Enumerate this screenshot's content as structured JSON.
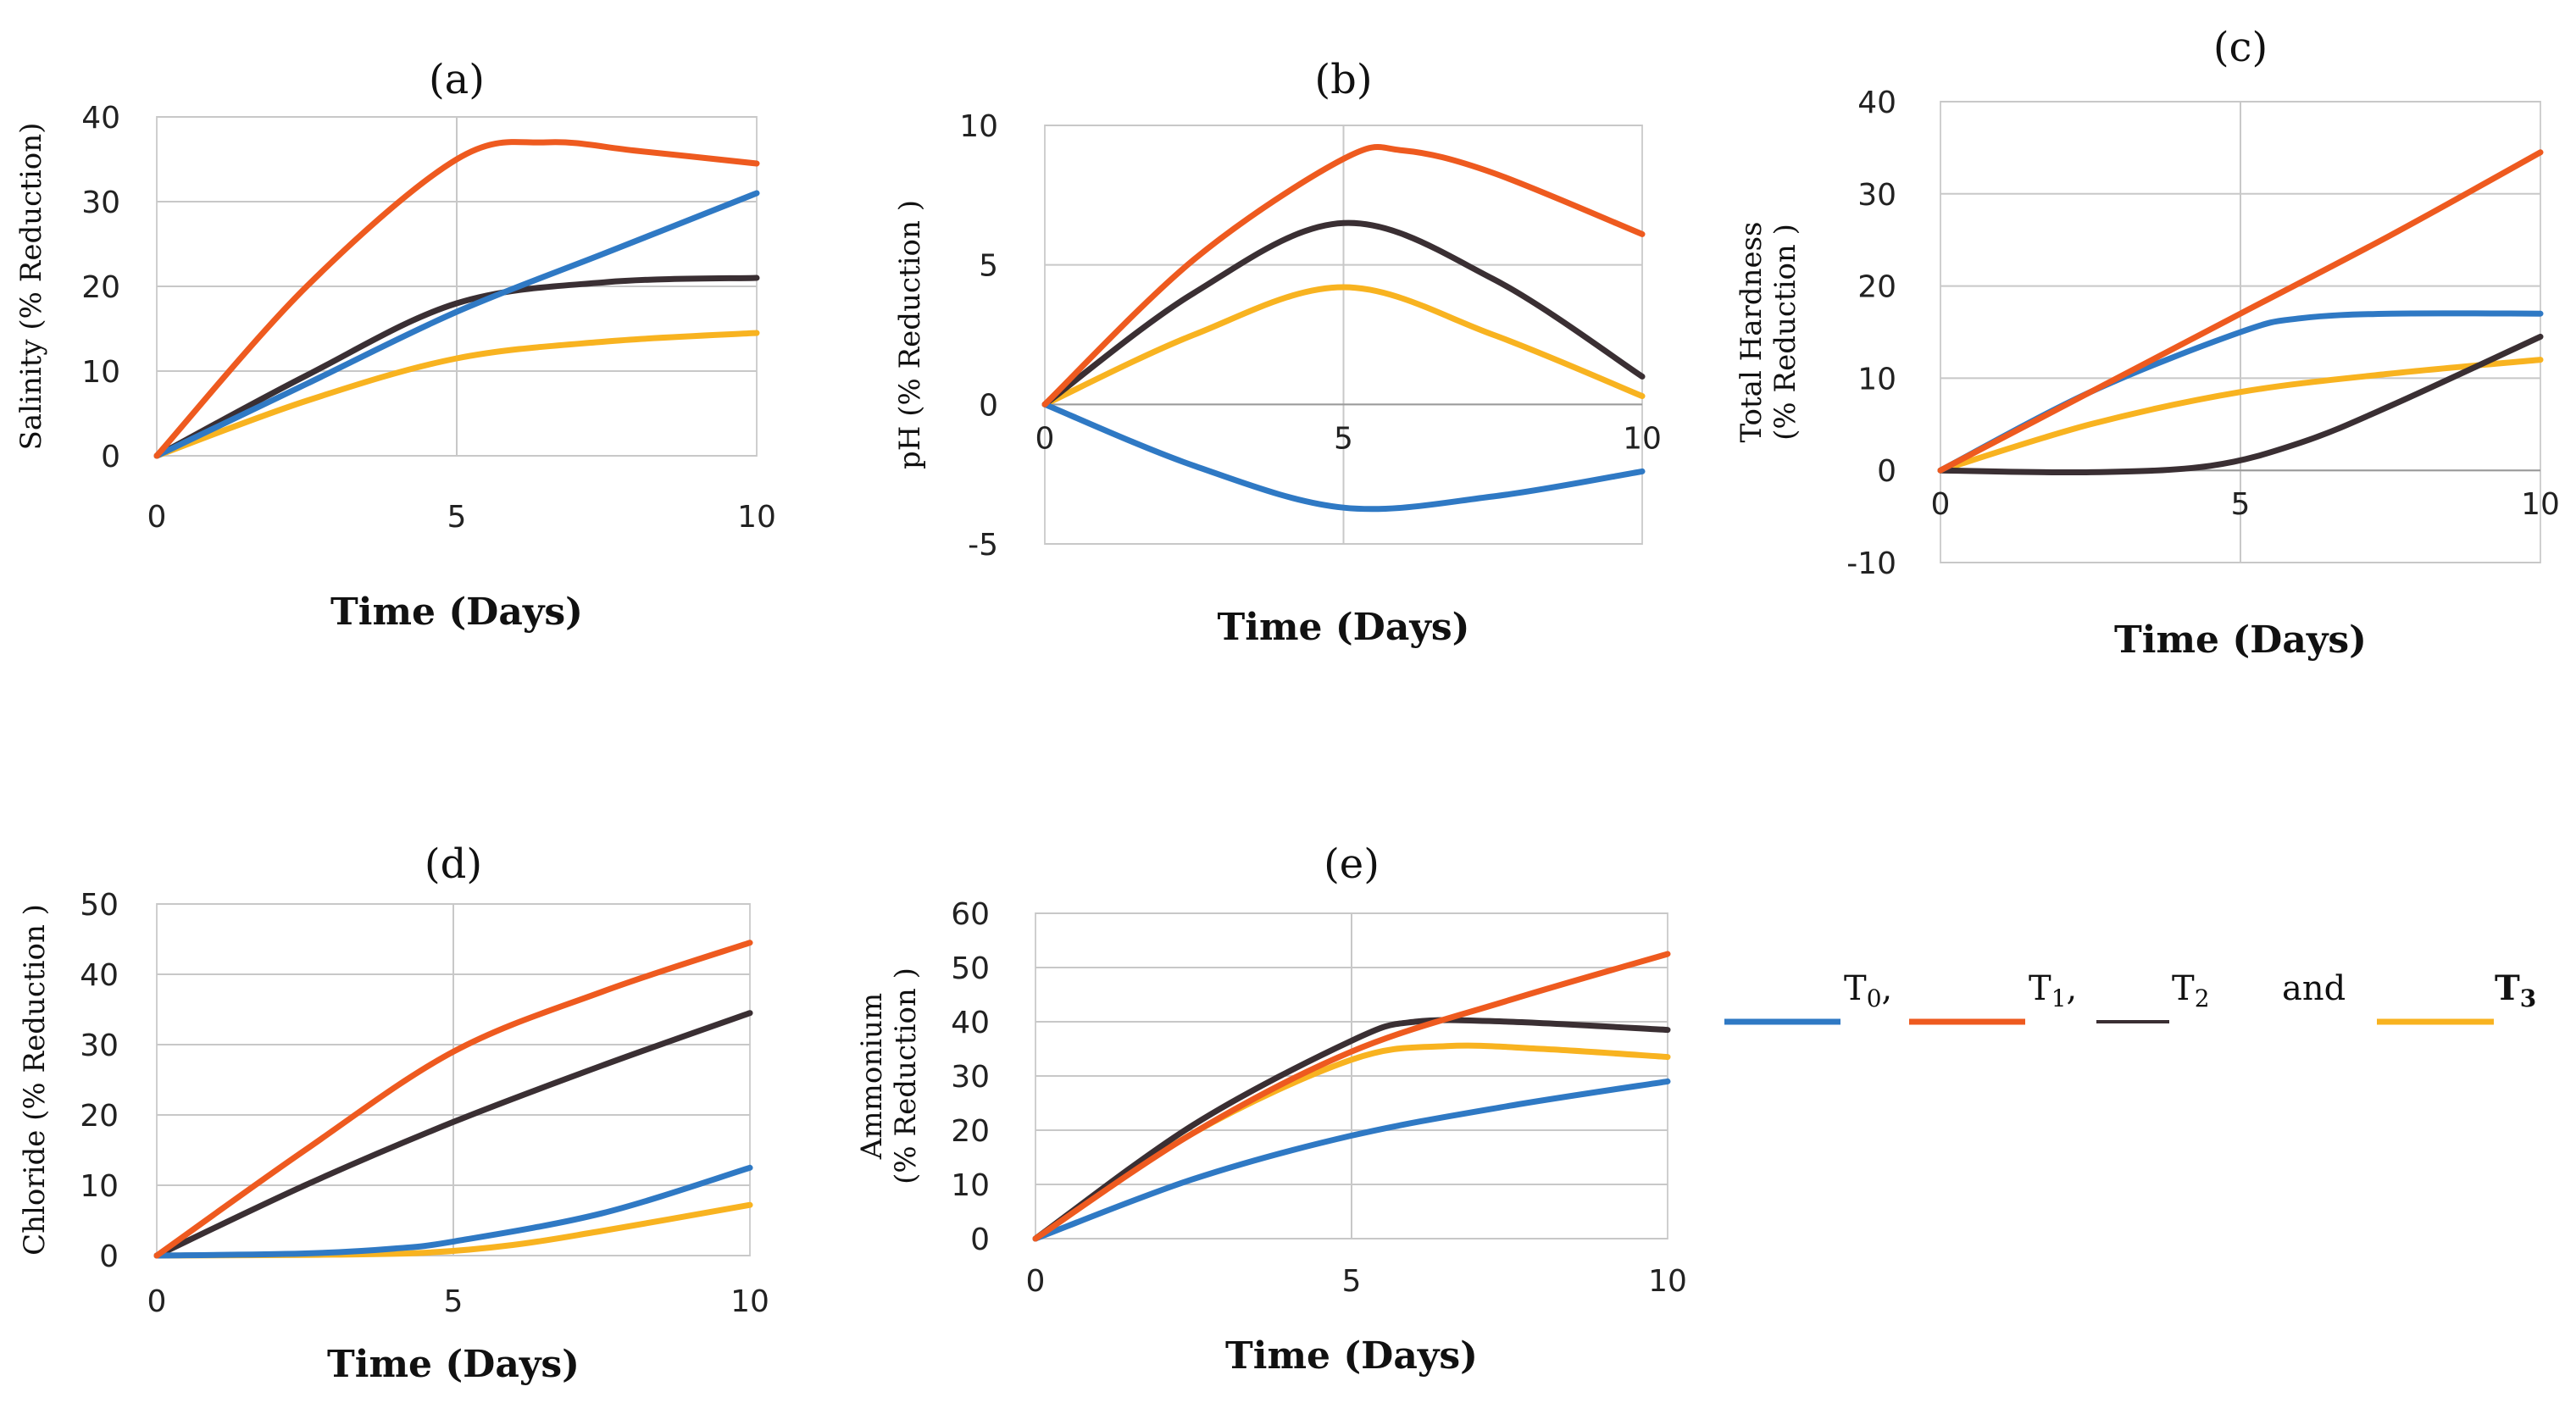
{
  "legend": {
    "entries": [
      {
        "key": "T0",
        "base": "T",
        "sub": "0",
        "suffix": ",",
        "color": "#2f79c4"
      },
      {
        "key": "T1",
        "base": "T",
        "sub": "1",
        "suffix": ",",
        "color": "#ee5a1f"
      },
      {
        "key": "T2",
        "base": "T",
        "sub": "2",
        "suffix": "",
        "color": "#3a2f33"
      },
      {
        "key": "T3",
        "base": "T",
        "sub": "3",
        "suffix": "",
        "color": "#f8b320"
      }
    ],
    "connector": "and"
  },
  "chart_data": [
    {
      "type": "line",
      "title": "(a)",
      "xlabel": "Time (Days)",
      "ylabel": [
        "Salinity (% Reduction)"
      ],
      "xlim": [
        0,
        10
      ],
      "ylim": [
        0,
        40
      ],
      "xticks": [
        0,
        5,
        10
      ],
      "yticks": [
        0,
        10,
        20,
        30,
        40
      ],
      "series": [
        {
          "name": "T0",
          "x": [
            0,
            2.5,
            5,
            7.5,
            10
          ],
          "values": [
            0,
            8.5,
            17,
            24,
            31
          ]
        },
        {
          "name": "T1",
          "x": [
            0,
            2.5,
            5,
            6.5,
            8,
            10
          ],
          "values": [
            0,
            20,
            35,
            37,
            36,
            34.5
          ]
        },
        {
          "name": "T2",
          "x": [
            0,
            2.5,
            5,
            7.5,
            10
          ],
          "values": [
            0,
            9.5,
            18,
            20.5,
            21
          ]
        },
        {
          "name": "T3",
          "x": [
            0,
            2.5,
            5,
            7.5,
            10
          ],
          "values": [
            0,
            6.5,
            11.5,
            13.5,
            14.5
          ]
        }
      ]
    },
    {
      "type": "line",
      "title": "(b)",
      "xlabel": "Time (Days)",
      "ylabel": [
        "pH (% Reduction )"
      ],
      "xlim": [
        0,
        10
      ],
      "ylim": [
        -5,
        10
      ],
      "xticks": [
        0,
        5,
        10
      ],
      "yticks": [
        -5,
        0,
        5,
        10
      ],
      "xaxis_at_zero": true,
      "series": [
        {
          "name": "T0",
          "x": [
            0,
            2.5,
            5,
            7.5,
            10
          ],
          "values": [
            0,
            -2.2,
            -3.7,
            -3.3,
            -2.4
          ]
        },
        {
          "name": "T1",
          "x": [
            0,
            2.5,
            5,
            6,
            7.5,
            10
          ],
          "values": [
            0,
            5.2,
            8.8,
            9.1,
            8.3,
            6.1
          ]
        },
        {
          "name": "T2",
          "x": [
            0,
            2.5,
            5,
            7.5,
            10
          ],
          "values": [
            0,
            4.0,
            6.5,
            4.5,
            1.0
          ]
        },
        {
          "name": "T3",
          "x": [
            0,
            2.5,
            5,
            7.5,
            10
          ],
          "values": [
            0,
            2.5,
            4.2,
            2.5,
            0.3
          ]
        }
      ]
    },
    {
      "type": "line",
      "title": "(c)",
      "xlabel": "Time (Days)",
      "ylabel": [
        "Total Hardness",
        "(% Reduction )"
      ],
      "xlim": [
        0,
        10
      ],
      "ylim": [
        -10,
        40
      ],
      "xticks": [
        0,
        5,
        10
      ],
      "yticks": [
        -10,
        0,
        10,
        20,
        30,
        40
      ],
      "xaxis_at_zero": true,
      "series": [
        {
          "name": "T0",
          "x": [
            0,
            2.5,
            5,
            6,
            7.5,
            10
          ],
          "values": [
            0,
            8.5,
            15,
            16.5,
            17,
            17
          ]
        },
        {
          "name": "T1",
          "x": [
            0,
            2.5,
            5,
            7.5,
            10
          ],
          "values": [
            0,
            8.5,
            17,
            25.5,
            34.5
          ]
        },
        {
          "name": "T2",
          "x": [
            0,
            2.5,
            4.5,
            6,
            7.5,
            10
          ],
          "values": [
            0,
            -0.2,
            0.5,
            3,
            7,
            14.5
          ]
        },
        {
          "name": "T3",
          "x": [
            0,
            2.5,
            5,
            7.5,
            10
          ],
          "values": [
            0,
            5,
            8.5,
            10.5,
            12
          ]
        }
      ]
    },
    {
      "type": "line",
      "title": "(d)",
      "xlabel": "Time (Days)",
      "ylabel": [
        "Chloride (% Reduction )"
      ],
      "xlim": [
        0,
        10
      ],
      "ylim": [
        0,
        50
      ],
      "xticks": [
        0,
        5,
        10
      ],
      "yticks": [
        0,
        10,
        20,
        30,
        40,
        50
      ],
      "series": [
        {
          "name": "T0",
          "x": [
            0,
            2.5,
            4,
            5,
            7.5,
            10
          ],
          "values": [
            0,
            0.3,
            1,
            2,
            6,
            12.5
          ]
        },
        {
          "name": "T1",
          "x": [
            0,
            2.5,
            5,
            7.5,
            10
          ],
          "values": [
            0,
            15,
            29,
            37.5,
            44.5
          ]
        },
        {
          "name": "T2",
          "x": [
            0,
            2.5,
            5,
            7.5,
            10
          ],
          "values": [
            0,
            10,
            19,
            27,
            34.5
          ]
        },
        {
          "name": "T3",
          "x": [
            0,
            2.5,
            4.5,
            6,
            7.5,
            10
          ],
          "values": [
            0,
            0.1,
            0.4,
            1.5,
            3.5,
            7.2
          ]
        }
      ]
    },
    {
      "type": "line",
      "title": "(e)",
      "xlabel": "Time (Days)",
      "ylabel": [
        "Ammonium",
        "(% Reduction )"
      ],
      "xlim": [
        0,
        10
      ],
      "ylim": [
        0,
        60
      ],
      "xticks": [
        0,
        5,
        10
      ],
      "yticks": [
        0,
        10,
        20,
        30,
        40,
        50,
        60
      ],
      "series": [
        {
          "name": "T0",
          "x": [
            0,
            2.5,
            5,
            7.5,
            10
          ],
          "values": [
            0,
            11,
            19,
            24.5,
            29
          ]
        },
        {
          "name": "T1",
          "x": [
            0,
            2.5,
            5,
            7.5,
            10
          ],
          "values": [
            0,
            19.5,
            34.5,
            44,
            52.5
          ]
        },
        {
          "name": "T2",
          "x": [
            0,
            2.5,
            5,
            6,
            7.5,
            10
          ],
          "values": [
            0,
            21,
            36.5,
            40,
            40,
            38.5
          ]
        },
        {
          "name": "T3",
          "x": [
            0,
            2.5,
            5,
            6.5,
            8,
            10
          ],
          "values": [
            0,
            19.5,
            33,
            35.5,
            35,
            33.5
          ]
        }
      ]
    }
  ]
}
